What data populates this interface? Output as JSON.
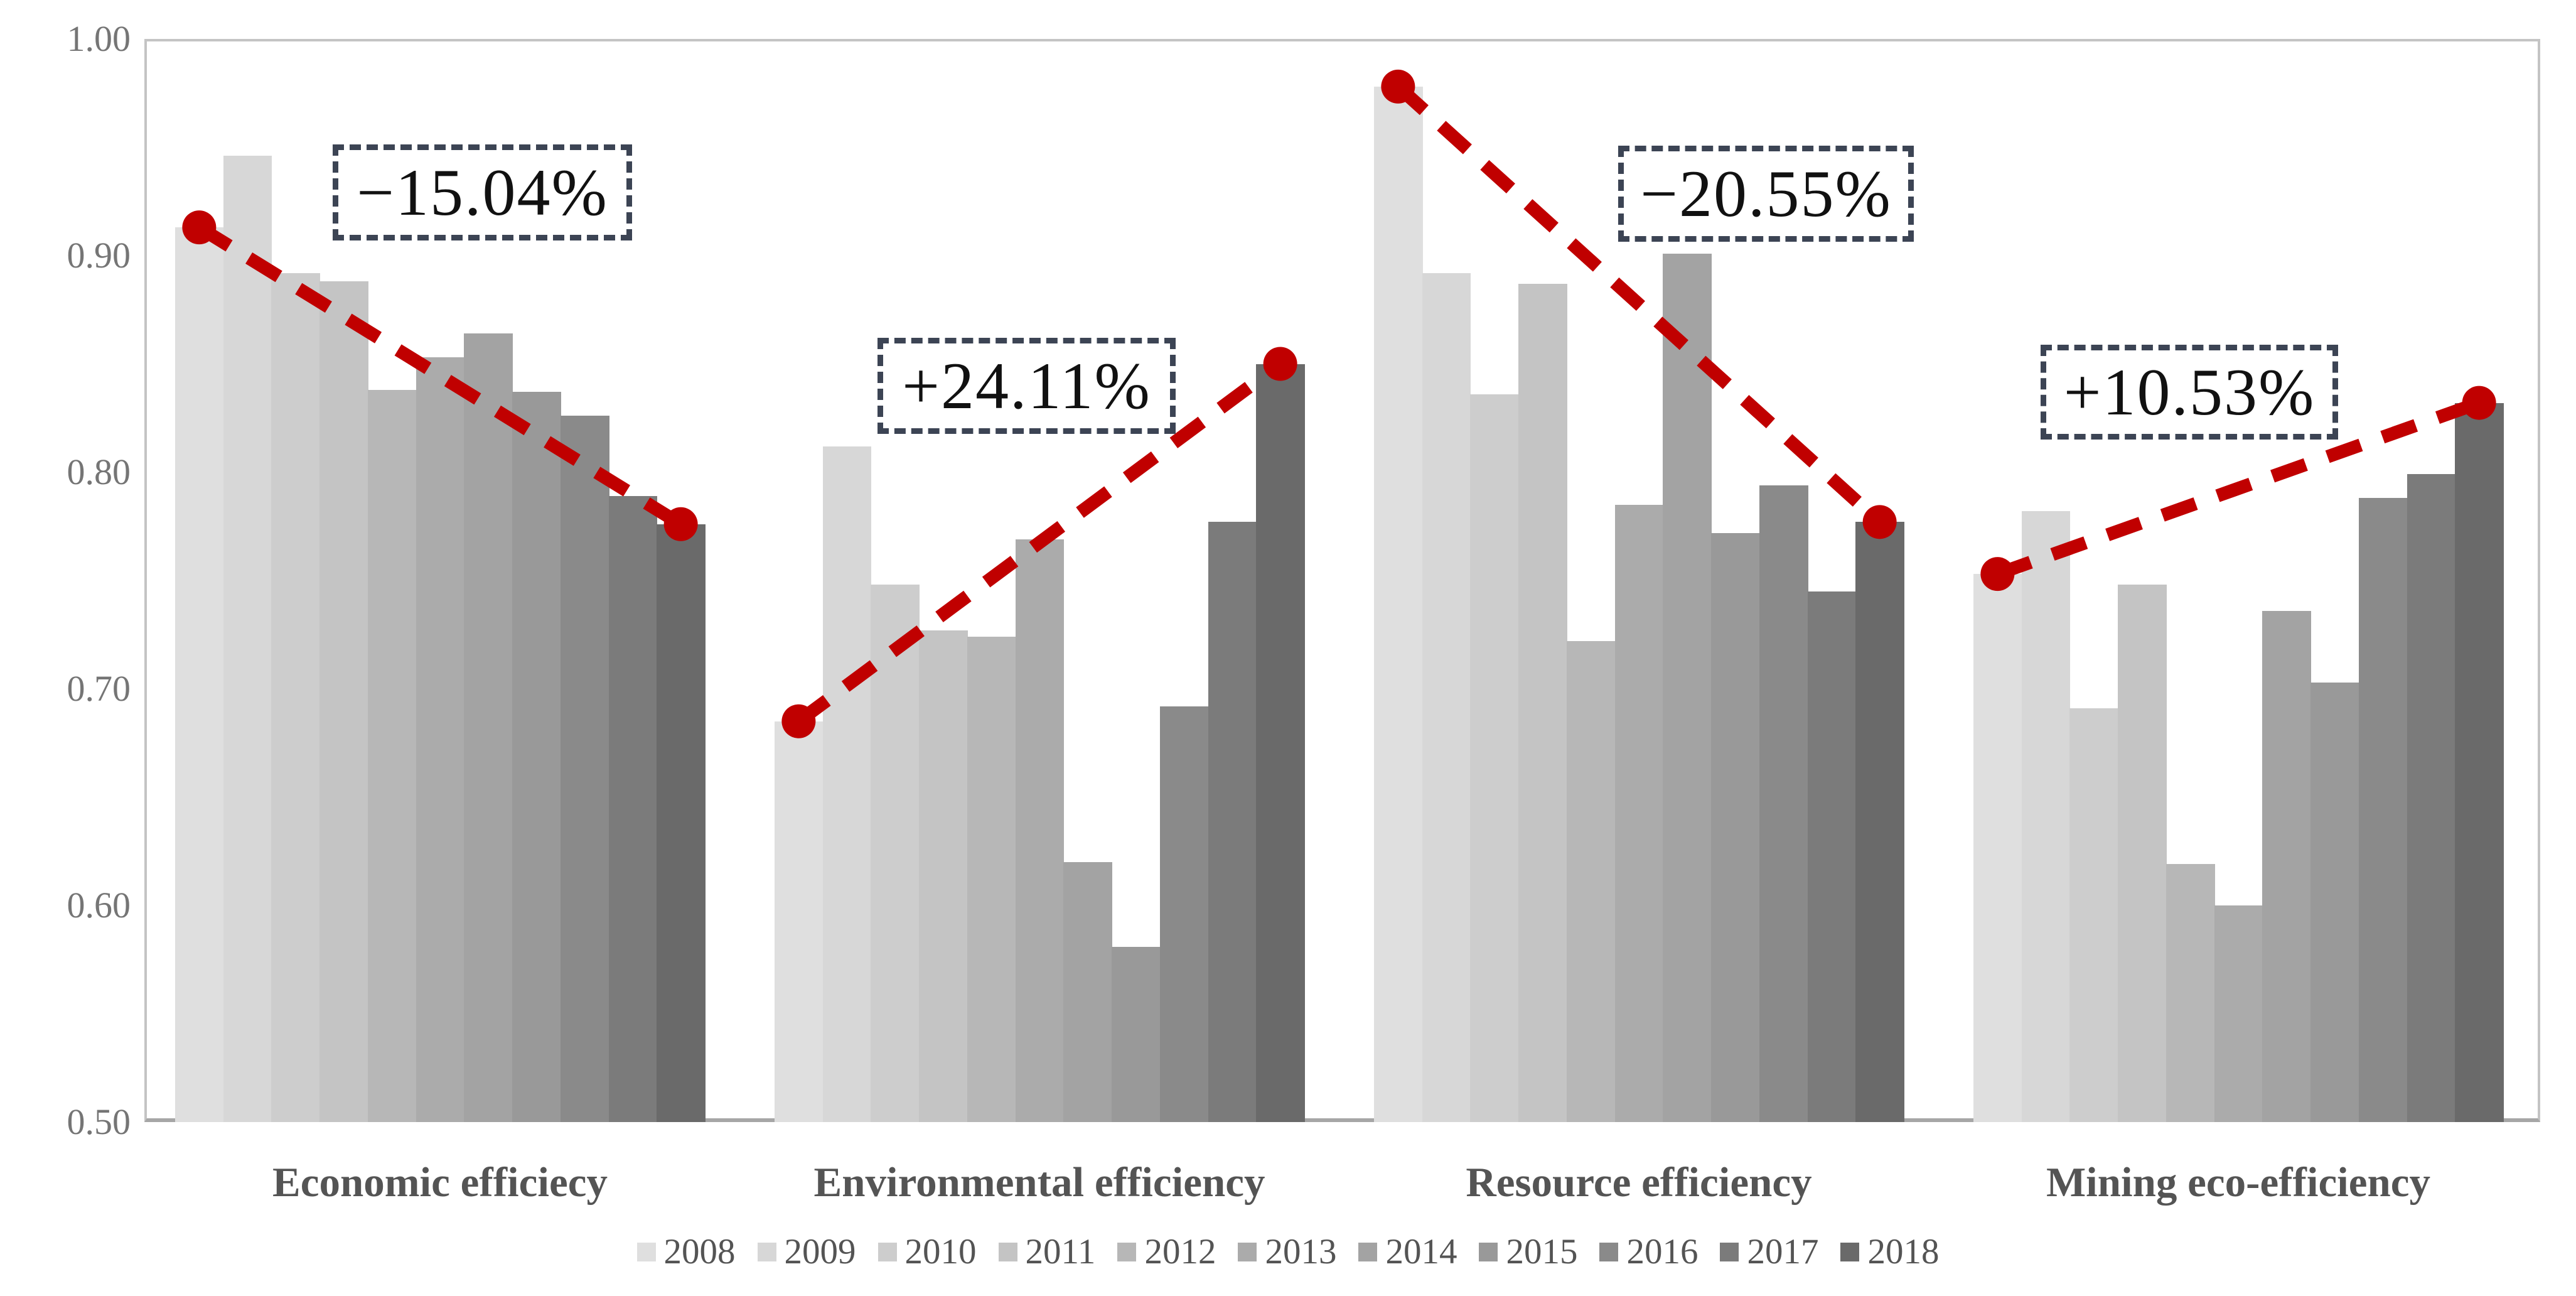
{
  "chart_data": {
    "type": "bar",
    "title": "",
    "xlabel": "",
    "ylabel": "",
    "ylim": [
      0.5,
      1.0
    ],
    "yticks": [
      "1.00",
      "0.90",
      "0.80",
      "0.70",
      "0.60",
      "0.50"
    ],
    "ytick_values": [
      1.0,
      0.9,
      0.8,
      0.7,
      0.6,
      0.5
    ],
    "grid": false,
    "legend_position": "bottom",
    "years": [
      "2008",
      "2009",
      "2010",
      "2011",
      "2012",
      "2013",
      "2014",
      "2015",
      "2016",
      "2017",
      "2018"
    ],
    "groups": [
      {
        "label": "Economic efficiecy",
        "annotation": "−15.04%",
        "values": [
          0.913,
          0.946,
          0.892,
          0.888,
          0.838,
          0.853,
          0.864,
          0.837,
          0.826,
          0.789,
          0.776
        ]
      },
      {
        "label": "Environmental efficiency",
        "annotation": "+24.11%",
        "values": [
          0.685,
          0.812,
          0.748,
          0.727,
          0.724,
          0.769,
          0.62,
          0.581,
          0.692,
          0.777,
          0.85
        ]
      },
      {
        "label": "Resource efficiency",
        "annotation": "−20.55%",
        "values": [
          0.978,
          0.892,
          0.836,
          0.887,
          0.722,
          0.785,
          0.901,
          0.772,
          0.794,
          0.745,
          0.777
        ]
      },
      {
        "label": "Mining eco-efficiency",
        "annotation": "+10.53%",
        "values": [
          0.753,
          0.782,
          0.691,
          0.748,
          0.619,
          0.6,
          0.736,
          0.703,
          0.788,
          0.799,
          0.832
        ]
      }
    ],
    "trend_lines": [
      {
        "group": "Economic efficiecy",
        "from": 0.913,
        "to": 0.776,
        "change": "−15.04%"
      },
      {
        "group": "Environmental efficiency",
        "from": 0.685,
        "to": 0.85,
        "change": "+24.11%"
      },
      {
        "group": "Resource efficiency",
        "from": 0.978,
        "to": 0.777,
        "change": "−20.55%"
      },
      {
        "group": "Mining eco-efficiency",
        "from": 0.753,
        "to": 0.832,
        "change": "+10.53%"
      }
    ]
  },
  "colors": {
    "background": "#ffffff",
    "bar_colors": [
      "#dfdfdf",
      "#d7d7d7",
      "#cdcdcd",
      "#c4c4c4",
      "#b7b7b7",
      "#ababab",
      "#a3a3a3",
      "#999999",
      "#8a8a8a",
      "#7b7b7b",
      "#6a6a6a"
    ],
    "trend_red": "#c00000",
    "annotation_border": "#3c4454",
    "annotation_text": "#111111",
    "axis_text": "#757575",
    "category_text": "#545454",
    "legend_text": "#545454",
    "plot_border": "#c4c4c4",
    "baseline": "#a6a6a6"
  }
}
